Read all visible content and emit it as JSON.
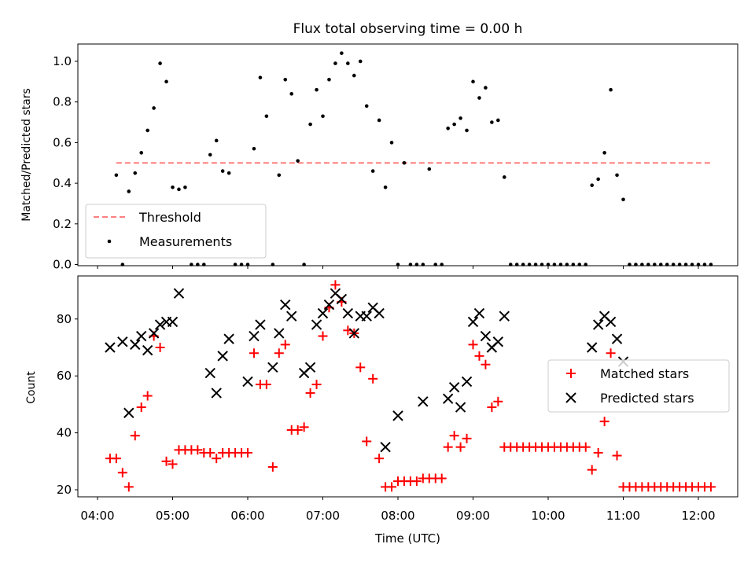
{
  "chart_data": [
    {
      "type": "scatter",
      "title": "Flux total observing time = 0.00 h",
      "xlabel": "",
      "ylabel": "Matched/Predicted stars",
      "xlim": [
        "04:00",
        "12:30"
      ],
      "ylim": [
        0,
        1.08
      ],
      "yticks": [
        "0.0",
        "0.2",
        "0.4",
        "0.6",
        "0.8",
        "1.0"
      ],
      "legend_position": "lower-left",
      "threshold": {
        "name": "Threshold",
        "value": 0.5,
        "x_range": [
          "04:15",
          "12:10"
        ],
        "color": "#ff7f7f",
        "style": "dashed"
      },
      "series": [
        {
          "name": "Measurements",
          "color": "#000000",
          "marker": "dot",
          "points": [
            [
              "04:15",
              0.44
            ],
            [
              "04:20",
              0.0
            ],
            [
              "04:25",
              0.36
            ],
            [
              "04:30",
              0.45
            ],
            [
              "04:35",
              0.55
            ],
            [
              "04:40",
              0.66
            ],
            [
              "04:45",
              0.77
            ],
            [
              "04:50",
              0.99
            ],
            [
              "04:55",
              0.9
            ],
            [
              "05:00",
              0.38
            ],
            [
              "05:05",
              0.37
            ],
            [
              "05:10",
              0.38
            ],
            [
              "05:15",
              0.0
            ],
            [
              "05:20",
              0.0
            ],
            [
              "05:25",
              0.0
            ],
            [
              "05:30",
              0.54
            ],
            [
              "05:35",
              0.61
            ],
            [
              "05:40",
              0.46
            ],
            [
              "05:45",
              0.45
            ],
            [
              "05:50",
              0.0
            ],
            [
              "05:55",
              0.0
            ],
            [
              "06:00",
              0.0
            ],
            [
              "06:05",
              0.57
            ],
            [
              "06:10",
              0.92
            ],
            [
              "06:15",
              0.73
            ],
            [
              "06:20",
              0.0
            ],
            [
              "06:25",
              0.44
            ],
            [
              "06:30",
              0.91
            ],
            [
              "06:35",
              0.84
            ],
            [
              "06:40",
              0.51
            ],
            [
              "06:45",
              0.0
            ],
            [
              "06:50",
              0.69
            ],
            [
              "06:55",
              0.86
            ],
            [
              "07:00",
              0.73
            ],
            [
              "07:05",
              0.91
            ],
            [
              "07:10",
              0.99
            ],
            [
              "07:15",
              1.04
            ],
            [
              "07:20",
              0.99
            ],
            [
              "07:25",
              0.93
            ],
            [
              "07:30",
              1.0
            ],
            [
              "07:35",
              0.78
            ],
            [
              "07:40",
              0.46
            ],
            [
              "07:45",
              0.71
            ],
            [
              "07:50",
              0.38
            ],
            [
              "07:55",
              0.6
            ],
            [
              "08:00",
              0.0
            ],
            [
              "08:05",
              0.5
            ],
            [
              "08:10",
              0.0
            ],
            [
              "08:15",
              0.0
            ],
            [
              "08:20",
              0.0
            ],
            [
              "08:25",
              0.47
            ],
            [
              "08:30",
              0.0
            ],
            [
              "08:35",
              0.0
            ],
            [
              "08:40",
              0.67
            ],
            [
              "08:45",
              0.69
            ],
            [
              "08:50",
              0.72
            ],
            [
              "08:55",
              0.66
            ],
            [
              "09:00",
              0.9
            ],
            [
              "09:05",
              0.82
            ],
            [
              "09:10",
              0.87
            ],
            [
              "09:15",
              0.7
            ],
            [
              "09:20",
              0.71
            ],
            [
              "09:25",
              0.43
            ],
            [
              "09:30",
              0.0
            ],
            [
              "09:35",
              0.0
            ],
            [
              "09:40",
              0.0
            ],
            [
              "09:45",
              0.0
            ],
            [
              "09:50",
              0.0
            ],
            [
              "09:55",
              0.0
            ],
            [
              "10:00",
              0.0
            ],
            [
              "10:05",
              0.0
            ],
            [
              "10:10",
              0.0
            ],
            [
              "10:15",
              0.0
            ],
            [
              "10:20",
              0.0
            ],
            [
              "10:25",
              0.0
            ],
            [
              "10:30",
              0.0
            ],
            [
              "10:35",
              0.39
            ],
            [
              "10:40",
              0.42
            ],
            [
              "10:45",
              0.55
            ],
            [
              "10:50",
              0.86
            ],
            [
              "10:55",
              0.44
            ],
            [
              "11:00",
              0.32
            ],
            [
              "11:05",
              0.0
            ],
            [
              "11:10",
              0.0
            ],
            [
              "11:15",
              0.0
            ],
            [
              "11:20",
              0.0
            ],
            [
              "11:25",
              0.0
            ],
            [
              "11:30",
              0.0
            ],
            [
              "11:35",
              0.0
            ],
            [
              "11:40",
              0.0
            ],
            [
              "11:45",
              0.0
            ],
            [
              "11:50",
              0.0
            ],
            [
              "11:55",
              0.0
            ],
            [
              "12:00",
              0.0
            ],
            [
              "12:05",
              0.0
            ],
            [
              "12:10",
              0.0
            ]
          ]
        }
      ]
    },
    {
      "type": "scatter",
      "title": "",
      "xlabel": "Time (UTC)",
      "ylabel": "Count",
      "xlim": [
        "04:00",
        "12:30"
      ],
      "ylim": [
        18,
        95
      ],
      "xticks": [
        "04:00",
        "05:00",
        "06:00",
        "07:00",
        "08:00",
        "09:00",
        "10:00",
        "11:00",
        "12:00"
      ],
      "yticks": [
        "20",
        "40",
        "60",
        "80"
      ],
      "legend_position": "center-right",
      "series": [
        {
          "name": "Matched stars",
          "color": "#ff0000",
          "marker": "plus",
          "points": [
            [
              "04:10",
              31
            ],
            [
              "04:15",
              31
            ],
            [
              "04:20",
              26
            ],
            [
              "04:25",
              21
            ],
            [
              "04:30",
              39
            ],
            [
              "04:35",
              49
            ],
            [
              "04:40",
              53
            ],
            [
              "04:45",
              74
            ],
            [
              "04:50",
              70
            ],
            [
              "04:55",
              30
            ],
            [
              "05:00",
              29
            ],
            [
              "05:05",
              34
            ],
            [
              "05:10",
              34
            ],
            [
              "05:15",
              34
            ],
            [
              "05:20",
              34
            ],
            [
              "05:25",
              33
            ],
            [
              "05:30",
              33
            ],
            [
              "05:35",
              31
            ],
            [
              "05:40",
              33
            ],
            [
              "05:45",
              33
            ],
            [
              "05:50",
              33
            ],
            [
              "05:55",
              33
            ],
            [
              "06:00",
              33
            ],
            [
              "06:05",
              68
            ],
            [
              "06:10",
              57
            ],
            [
              "06:15",
              57
            ],
            [
              "06:20",
              28
            ],
            [
              "06:25",
              68
            ],
            [
              "06:30",
              71
            ],
            [
              "06:35",
              41
            ],
            [
              "06:40",
              41
            ],
            [
              "06:45",
              42
            ],
            [
              "06:50",
              54
            ],
            [
              "06:55",
              57
            ],
            [
              "07:00",
              74
            ],
            [
              "07:05",
              84
            ],
            [
              "07:10",
              92
            ],
            [
              "07:15",
              86
            ],
            [
              "07:20",
              76
            ],
            [
              "07:25",
              75
            ],
            [
              "07:30",
              63
            ],
            [
              "07:35",
              37
            ],
            [
              "07:40",
              59
            ],
            [
              "07:45",
              31
            ],
            [
              "07:50",
              21
            ],
            [
              "07:55",
              21
            ],
            [
              "08:00",
              23
            ],
            [
              "08:05",
              23
            ],
            [
              "08:10",
              23
            ],
            [
              "08:15",
              23
            ],
            [
              "08:20",
              24
            ],
            [
              "08:25",
              24
            ],
            [
              "08:30",
              24
            ],
            [
              "08:35",
              24
            ],
            [
              "08:40",
              35
            ],
            [
              "08:45",
              39
            ],
            [
              "08:50",
              35
            ],
            [
              "08:55",
              38
            ],
            [
              "09:00",
              71
            ],
            [
              "09:05",
              67
            ],
            [
              "09:10",
              64
            ],
            [
              "09:15",
              49
            ],
            [
              "09:20",
              51
            ],
            [
              "09:25",
              35
            ],
            [
              "09:30",
              35
            ],
            [
              "09:35",
              35
            ],
            [
              "09:40",
              35
            ],
            [
              "09:45",
              35
            ],
            [
              "09:50",
              35
            ],
            [
              "09:55",
              35
            ],
            [
              "10:00",
              35
            ],
            [
              "10:05",
              35
            ],
            [
              "10:10",
              35
            ],
            [
              "10:15",
              35
            ],
            [
              "10:20",
              35
            ],
            [
              "10:25",
              35
            ],
            [
              "10:30",
              35
            ],
            [
              "10:35",
              27
            ],
            [
              "10:40",
              33
            ],
            [
              "10:45",
              44
            ],
            [
              "10:50",
              68
            ],
            [
              "10:55",
              32
            ],
            [
              "11:00",
              21
            ],
            [
              "11:05",
              21
            ],
            [
              "11:10",
              21
            ],
            [
              "11:15",
              21
            ],
            [
              "11:20",
              21
            ],
            [
              "11:25",
              21
            ],
            [
              "11:30",
              21
            ],
            [
              "11:35",
              21
            ],
            [
              "11:40",
              21
            ],
            [
              "11:45",
              21
            ],
            [
              "11:50",
              21
            ],
            [
              "11:55",
              21
            ],
            [
              "12:00",
              21
            ],
            [
              "12:05",
              21
            ],
            [
              "12:10",
              21
            ]
          ]
        },
        {
          "name": "Predicted stars",
          "color": "#000000",
          "marker": "cross",
          "points": [
            [
              "04:10",
              70
            ],
            [
              "04:20",
              72
            ],
            [
              "04:25",
              47
            ],
            [
              "04:30",
              71
            ],
            [
              "04:35",
              74
            ],
            [
              "04:40",
              69
            ],
            [
              "04:45",
              75
            ],
            [
              "04:50",
              78
            ],
            [
              "04:55",
              79
            ],
            [
              "05:00",
              79
            ],
            [
              "05:05",
              89
            ],
            [
              "05:30",
              61
            ],
            [
              "05:35",
              54
            ],
            [
              "05:40",
              67
            ],
            [
              "05:45",
              73
            ],
            [
              "06:00",
              58
            ],
            [
              "06:05",
              74
            ],
            [
              "06:10",
              78
            ],
            [
              "06:20",
              63
            ],
            [
              "06:25",
              75
            ],
            [
              "06:30",
              85
            ],
            [
              "06:35",
              81
            ],
            [
              "06:45",
              61
            ],
            [
              "06:50",
              63
            ],
            [
              "06:55",
              78
            ],
            [
              "07:00",
              82
            ],
            [
              "07:05",
              85
            ],
            [
              "07:10",
              89
            ],
            [
              "07:15",
              87
            ],
            [
              "07:20",
              82
            ],
            [
              "07:25",
              75
            ],
            [
              "07:30",
              81
            ],
            [
              "07:35",
              81
            ],
            [
              "07:40",
              84
            ],
            [
              "07:45",
              82
            ],
            [
              "07:50",
              35
            ],
            [
              "08:00",
              46
            ],
            [
              "08:20",
              51
            ],
            [
              "08:40",
              52
            ],
            [
              "08:45",
              56
            ],
            [
              "08:50",
              49
            ],
            [
              "08:55",
              58
            ],
            [
              "09:00",
              79
            ],
            [
              "09:05",
              82
            ],
            [
              "09:10",
              74
            ],
            [
              "09:15",
              70
            ],
            [
              "09:20",
              72
            ],
            [
              "09:25",
              81
            ],
            [
              "10:35",
              70
            ],
            [
              "10:40",
              78
            ],
            [
              "10:45",
              81
            ],
            [
              "10:50",
              79
            ],
            [
              "10:55",
              73
            ],
            [
              "11:00",
              65
            ]
          ]
        }
      ]
    }
  ]
}
